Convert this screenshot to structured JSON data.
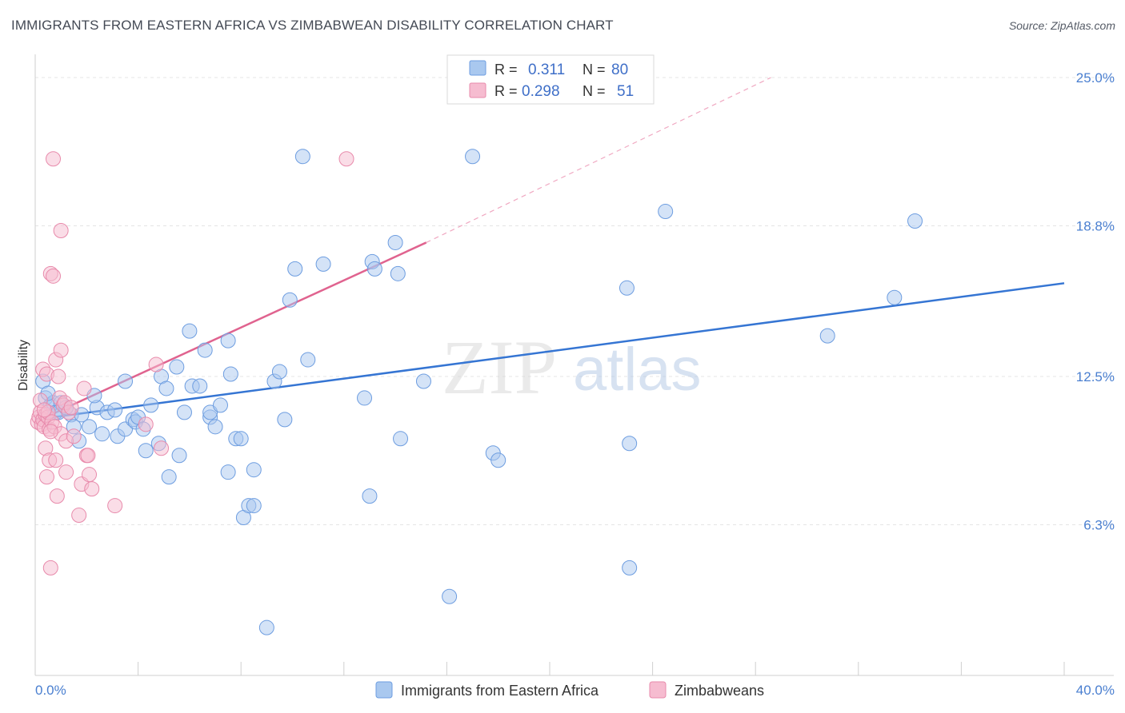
{
  "title": "IMMIGRANTS FROM EASTERN AFRICA VS ZIMBABWEAN DISABILITY CORRELATION CHART",
  "source": "Source: ZipAtlas.com",
  "watermark": {
    "zip": "ZIP",
    "atlas": "atlas"
  },
  "legend": {
    "rows": [
      {
        "r_label": "R =",
        "r_value": "0.311",
        "n_label": "N =",
        "n_value": "80",
        "color": "#a9c8ef",
        "stroke": "#6d9de0"
      },
      {
        "r_label": "R =",
        "r_value": "0.298",
        "n_label": "N =",
        "n_value": "51",
        "color": "#f6bcd0",
        "stroke": "#e88aab"
      }
    ]
  },
  "chart_data": {
    "type": "scatter",
    "title": "IMMIGRANTS FROM EASTERN AFRICA VS ZIMBABWEAN DISABILITY CORRELATION CHART",
    "xlabel": "",
    "ylabel": "Disability",
    "xlim": [
      0,
      40
    ],
    "ylim": [
      0,
      25.75
    ],
    "x_tick_labels": [
      "0.0%",
      "40.0%"
    ],
    "y_ticks": [
      6.3,
      12.5,
      18.8,
      25.0
    ],
    "y_tick_labels": [
      "6.3%",
      "12.5%",
      "18.8%",
      "25.0%"
    ],
    "grid": true,
    "series": [
      {
        "name": "Immigrants from Eastern Africa",
        "color": "#a9c8ef",
        "stroke": "#6d9de0",
        "trend": {
          "x": [
            0,
            40
          ],
          "y": [
            10.7,
            16.4
          ],
          "color": "#3575d3"
        },
        "points": [
          [
            0.3,
            12.3
          ],
          [
            0.4,
            11.6
          ],
          [
            0.6,
            11.3
          ],
          [
            0.7,
            11.4
          ],
          [
            0.8,
            11.0
          ],
          [
            1.0,
            11.4
          ],
          [
            1.4,
            10.9
          ],
          [
            1.5,
            10.4
          ],
          [
            1.7,
            9.8
          ],
          [
            1.8,
            10.9
          ],
          [
            2.1,
            10.4
          ],
          [
            2.4,
            11.2
          ],
          [
            2.3,
            11.7
          ],
          [
            2.6,
            10.1
          ],
          [
            2.8,
            11.0
          ],
          [
            3.1,
            11.1
          ],
          [
            3.2,
            10.0
          ],
          [
            3.5,
            10.3
          ],
          [
            3.8,
            10.7
          ],
          [
            3.5,
            12.3
          ],
          [
            3.9,
            10.6
          ],
          [
            4.0,
            10.8
          ],
          [
            4.2,
            10.3
          ],
          [
            4.3,
            9.4
          ],
          [
            4.5,
            11.3
          ],
          [
            4.8,
            9.7
          ],
          [
            4.9,
            12.5
          ],
          [
            5.1,
            12.0
          ],
          [
            5.2,
            8.3
          ],
          [
            5.5,
            12.9
          ],
          [
            5.6,
            9.2
          ],
          [
            5.8,
            11.0
          ],
          [
            6.0,
            14.4
          ],
          [
            6.1,
            12.1
          ],
          [
            6.4,
            12.1
          ],
          [
            6.6,
            13.6
          ],
          [
            6.8,
            10.8
          ],
          [
            6.8,
            11.0
          ],
          [
            7.0,
            10.4
          ],
          [
            7.2,
            11.3
          ],
          [
            7.5,
            14.0
          ],
          [
            7.5,
            8.5
          ],
          [
            7.6,
            12.6
          ],
          [
            7.8,
            9.9
          ],
          [
            8.0,
            9.9
          ],
          [
            8.1,
            6.6
          ],
          [
            8.3,
            7.1
          ],
          [
            8.5,
            7.1
          ],
          [
            8.5,
            8.6
          ],
          [
            9.0,
            2.0
          ],
          [
            9.3,
            12.3
          ],
          [
            9.5,
            12.7
          ],
          [
            9.7,
            10.7
          ],
          [
            9.9,
            15.7
          ],
          [
            10.1,
            17.0
          ],
          [
            10.4,
            21.7
          ],
          [
            10.6,
            13.2
          ],
          [
            11.2,
            17.2
          ],
          [
            12.8,
            11.6
          ],
          [
            13.0,
            7.5
          ],
          [
            13.1,
            17.3
          ],
          [
            13.2,
            17.0
          ],
          [
            14.0,
            18.1
          ],
          [
            14.1,
            16.8
          ],
          [
            14.2,
            9.9
          ],
          [
            15.1,
            12.3
          ],
          [
            16.1,
            3.3
          ],
          [
            17.0,
            21.7
          ],
          [
            17.8,
            9.3
          ],
          [
            18.0,
            9.0
          ],
          [
            23.0,
            16.2
          ],
          [
            23.1,
            9.7
          ],
          [
            23.1,
            4.5
          ],
          [
            24.5,
            19.4
          ],
          [
            30.8,
            14.2
          ],
          [
            33.4,
            15.8
          ],
          [
            34.2,
            19.0
          ],
          [
            0.9,
            11.0
          ],
          [
            0.5,
            11.8
          ],
          [
            1.2,
            11.2
          ]
        ]
      },
      {
        "name": "Zimbabweans",
        "color": "#f6bcd0",
        "stroke": "#e88aab",
        "trend": {
          "x": [
            0,
            15.2
          ],
          "y": [
            10.6,
            18.1
          ],
          "dash_to": [
            28.6,
            25.0
          ],
          "color": "#e0638f"
        },
        "points": [
          [
            0.1,
            10.6
          ],
          [
            0.15,
            10.8
          ],
          [
            0.2,
            11.0
          ],
          [
            0.25,
            10.5
          ],
          [
            0.3,
            10.7
          ],
          [
            0.3,
            12.8
          ],
          [
            0.35,
            10.4
          ],
          [
            0.4,
            10.9
          ],
          [
            0.4,
            9.5
          ],
          [
            0.45,
            12.6
          ],
          [
            0.45,
            8.3
          ],
          [
            0.5,
            10.8
          ],
          [
            0.5,
            11.0
          ],
          [
            0.55,
            10.3
          ],
          [
            0.55,
            9.0
          ],
          [
            0.6,
            16.8
          ],
          [
            0.6,
            4.5
          ],
          [
            0.65,
            10.6
          ],
          [
            0.7,
            16.7
          ],
          [
            0.7,
            21.6
          ],
          [
            0.75,
            10.4
          ],
          [
            0.8,
            9.0
          ],
          [
            0.8,
            13.2
          ],
          [
            0.85,
            7.5
          ],
          [
            0.9,
            12.5
          ],
          [
            0.95,
            11.6
          ],
          [
            1.0,
            10.1
          ],
          [
            1.0,
            18.6
          ],
          [
            1.0,
            13.6
          ],
          [
            1.1,
            11.3
          ],
          [
            1.15,
            11.4
          ],
          [
            1.2,
            9.8
          ],
          [
            1.2,
            8.5
          ],
          [
            1.3,
            11.0
          ],
          [
            1.4,
            11.2
          ],
          [
            1.5,
            10.0
          ],
          [
            1.7,
            6.7
          ],
          [
            1.8,
            8.0
          ],
          [
            1.9,
            12.0
          ],
          [
            2.0,
            9.2
          ],
          [
            2.05,
            9.2
          ],
          [
            2.1,
            8.4
          ],
          [
            2.2,
            7.8
          ],
          [
            3.1,
            7.1
          ],
          [
            4.3,
            10.5
          ],
          [
            4.7,
            13.0
          ],
          [
            4.9,
            9.5
          ],
          [
            0.2,
            11.5
          ],
          [
            0.35,
            11.1
          ],
          [
            0.6,
            10.2
          ],
          [
            12.1,
            21.6
          ]
        ]
      }
    ]
  },
  "bottom_legend": [
    {
      "label": "Immigrants from Eastern Africa",
      "color": "#a9c8ef",
      "stroke": "#6d9de0"
    },
    {
      "label": "Zimbabweans",
      "color": "#f6bcd0",
      "stroke": "#e88aab"
    }
  ]
}
